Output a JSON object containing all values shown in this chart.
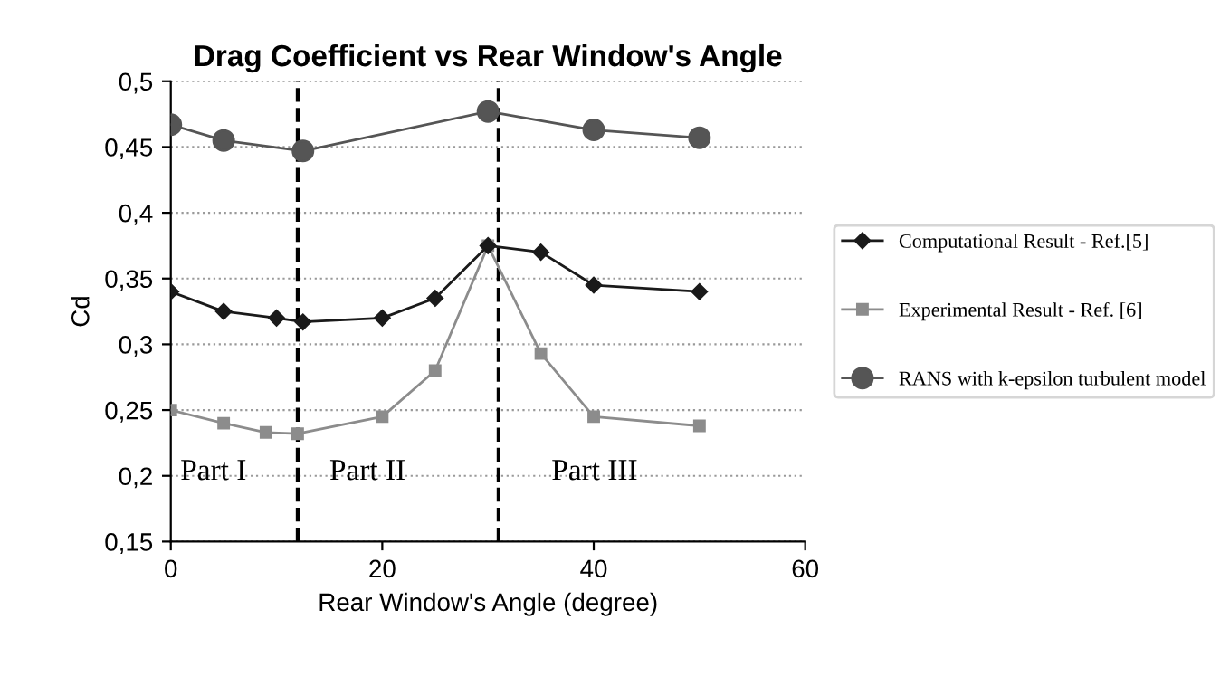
{
  "chart_data": {
    "type": "line",
    "title": "Drag Coefficient vs Rear Window's Angle",
    "xlabel": "Rear Window's Angle (degree)",
    "ylabel": "Cd",
    "xlim": [
      0,
      60
    ],
    "xticks": [
      0,
      20,
      40,
      60
    ],
    "ylim": [
      0.15,
      0.5
    ],
    "yticks": [
      {
        "value": 0.15,
        "label": "0,15"
      },
      {
        "value": 0.2,
        "label": "0,2"
      },
      {
        "value": 0.25,
        "label": "0,25"
      },
      {
        "value": 0.3,
        "label": "0,3"
      },
      {
        "value": 0.35,
        "label": "0,35"
      },
      {
        "value": 0.4,
        "label": "0,4"
      },
      {
        "value": 0.45,
        "label": "0,45"
      },
      {
        "value": 0.5,
        "label": "0,5"
      }
    ],
    "grid": "y",
    "legend": "right",
    "line_style": "solid",
    "series": [
      {
        "name": "Computational Result - Ref.[5]",
        "color": "#1a1a1a",
        "marker": "diamond",
        "x": [
          0,
          5,
          10,
          12.5,
          20,
          25,
          30,
          35,
          40,
          50
        ],
        "values": [
          0.34,
          0.325,
          0.32,
          0.317,
          0.32,
          0.335,
          0.375,
          0.37,
          0.345,
          0.34
        ]
      },
      {
        "name": "Experimental Result - Ref. [6]",
        "color": "#8c8c8c",
        "marker": "square",
        "x": [
          0,
          5,
          9,
          12,
          20,
          25,
          30,
          35,
          40,
          50
        ],
        "values": [
          0.25,
          0.24,
          0.233,
          0.232,
          0.245,
          0.28,
          0.375,
          0.293,
          0.245,
          0.238
        ]
      },
      {
        "name": "RANS with k-epsilon turbulent model",
        "color": "#555555",
        "marker": "circle",
        "x": [
          0,
          5,
          12.5,
          30,
          40,
          50
        ],
        "values": [
          0.467,
          0.455,
          0.447,
          0.477,
          0.463,
          0.457
        ]
      }
    ],
    "ref_lines": [
      {
        "axis": "x",
        "value": 12,
        "color": "#000000",
        "line_style": "dashed"
      },
      {
        "axis": "x",
        "value": 31,
        "color": "#000000",
        "line_style": "dashed"
      }
    ],
    "annotations": [
      "Part I",
      "Part II",
      "Part III"
    ]
  }
}
